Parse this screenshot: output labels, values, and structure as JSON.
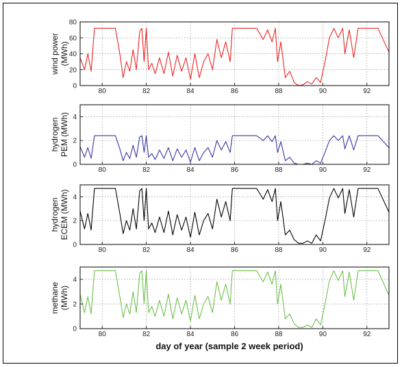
{
  "chart_data": {
    "type": "line",
    "xlabel": "day of year (sample 2 week period)",
    "x_ticks": [
      80,
      82,
      84,
      86,
      88,
      90,
      92
    ],
    "xlim": [
      79,
      93
    ],
    "grid": true,
    "panels": [
      {
        "ylabel": [
          "wind power",
          "(MWh)"
        ],
        "color": "#ee2222",
        "ylim": [
          0,
          80
        ],
        "y_ticks": [
          0,
          20,
          40,
          60,
          80
        ],
        "series": [
          {
            "x": [
              79.0,
              79.2,
              79.35,
              79.5,
              79.65,
              79.8,
              80.0,
              80.2,
              80.4,
              80.6,
              80.8,
              80.95,
              81.1,
              81.25,
              81.4,
              81.55,
              81.7,
              81.8,
              81.9,
              82.0,
              82.1,
              82.25,
              82.4,
              82.6,
              82.8,
              83.0,
              83.2,
              83.4,
              83.6,
              83.8,
              84.0,
              84.2,
              84.4,
              84.6,
              84.8,
              85.0,
              85.2,
              85.4,
              85.6,
              85.8,
              85.9,
              86.0,
              86.5,
              87.0,
              87.3,
              87.5,
              87.7,
              87.85,
              87.95,
              88.1,
              88.3,
              88.5,
              88.7,
              88.9,
              89.1,
              89.3,
              89.5,
              89.7,
              89.9,
              90.1,
              90.3,
              90.5,
              90.7,
              90.9,
              91.0,
              91.2,
              91.4,
              91.6,
              91.8,
              92.0,
              92.5,
              93.0
            ],
            "y": [
              35,
              20,
              40,
              18,
              72,
              72,
              72,
              72,
              72,
              72,
              40,
              10,
              30,
              18,
              45,
              20,
              68,
              72,
              30,
              72,
              20,
              28,
              15,
              35,
              15,
              42,
              12,
              38,
              18,
              35,
              8,
              40,
              10,
              30,
              40,
              20,
              58,
              35,
              55,
              30,
              72,
              72,
              72,
              72,
              58,
              70,
              55,
              72,
              30,
              55,
              10,
              18,
              4,
              0,
              1,
              5,
              2,
              10,
              4,
              30,
              60,
              72,
              60,
              72,
              40,
              70,
              35,
              72,
              72,
              72,
              72,
              42
            ]
          }
        ]
      },
      {
        "ylabel": [
          "hydrogen",
          "PEM (MWh)"
        ],
        "color": "#3535a5",
        "ylim": [
          0,
          5
        ],
        "y_ticks": [
          0,
          2,
          4
        ],
        "series": [
          {
            "x": [
              79.0,
              79.2,
              79.35,
              79.5,
              79.65,
              79.8,
              80.0,
              80.2,
              80.4,
              80.6,
              80.8,
              80.95,
              81.1,
              81.25,
              81.4,
              81.55,
              81.7,
              81.8,
              81.9,
              82.0,
              82.1,
              82.25,
              82.4,
              82.6,
              82.8,
              83.0,
              83.2,
              83.4,
              83.6,
              83.8,
              84.0,
              84.2,
              84.4,
              84.6,
              84.8,
              85.0,
              85.2,
              85.4,
              85.6,
              85.8,
              85.9,
              86.0,
              86.5,
              87.0,
              87.3,
              87.5,
              87.7,
              87.85,
              87.95,
              88.1,
              88.3,
              88.5,
              88.7,
              88.9,
              89.1,
              89.3,
              89.5,
              89.7,
              89.9,
              90.1,
              90.3,
              90.5,
              90.7,
              90.9,
              91.0,
              91.2,
              91.4,
              91.6,
              91.8,
              92.0,
              92.5,
              93.0
            ],
            "y": [
              1.5,
              0.6,
              1.4,
              0.5,
              2.4,
              2.4,
              2.4,
              2.4,
              2.4,
              2.4,
              1.3,
              0.3,
              1.0,
              0.5,
              1.6,
              0.6,
              2.3,
              2.4,
              1.0,
              2.4,
              0.6,
              0.9,
              0.4,
              1.2,
              0.5,
              1.4,
              0.3,
              1.3,
              0.6,
              1.2,
              0.2,
              1.4,
              0.3,
              1.0,
              1.4,
              0.6,
              2.0,
              1.2,
              1.9,
              1.0,
              2.4,
              2.4,
              2.4,
              2.4,
              2.0,
              2.4,
              1.9,
              2.4,
              1.0,
              1.9,
              0.3,
              0.6,
              0.1,
              0.0,
              0.0,
              0.1,
              0.0,
              0.3,
              0.1,
              1.0,
              2.0,
              2.4,
              2.0,
              2.4,
              1.3,
              2.4,
              1.2,
              2.4,
              2.4,
              2.4,
              2.4,
              1.4
            ]
          }
        ]
      },
      {
        "ylabel": [
          "hydrogen",
          "ECEM (MWh)"
        ],
        "color": "#000000",
        "ylim": [
          0,
          5
        ],
        "y_ticks": [
          0,
          2,
          4
        ],
        "series": [
          {
            "x": [
              79.0,
              79.2,
              79.35,
              79.5,
              79.65,
              79.8,
              80.0,
              80.2,
              80.4,
              80.6,
              80.8,
              80.95,
              81.1,
              81.25,
              81.4,
              81.55,
              81.7,
              81.8,
              81.9,
              82.0,
              82.1,
              82.25,
              82.4,
              82.6,
              82.8,
              83.0,
              83.2,
              83.4,
              83.6,
              83.8,
              84.0,
              84.2,
              84.4,
              84.6,
              84.8,
              85.0,
              85.2,
              85.4,
              85.6,
              85.8,
              85.9,
              86.0,
              86.5,
              87.0,
              87.3,
              87.5,
              87.7,
              87.85,
              87.95,
              88.1,
              88.3,
              88.5,
              88.7,
              88.9,
              89.1,
              89.3,
              89.5,
              89.7,
              89.9,
              90.1,
              90.3,
              90.5,
              90.7,
              90.9,
              91.0,
              91.2,
              91.4,
              91.6,
              91.8,
              92.0,
              92.5,
              93.0
            ],
            "y": [
              2.8,
              1.3,
              2.6,
              1.2,
              4.7,
              4.7,
              4.7,
              4.7,
              4.7,
              4.7,
              2.6,
              0.9,
              2.0,
              1.2,
              3.0,
              1.3,
              4.5,
              4.7,
              2.0,
              4.7,
              1.3,
              1.8,
              1.0,
              2.3,
              1.0,
              2.8,
              0.8,
              2.5,
              1.2,
              2.3,
              0.6,
              2.7,
              0.8,
              2.0,
              2.6,
              1.3,
              3.8,
              2.3,
              3.6,
              2.0,
              4.7,
              4.7,
              4.7,
              4.7,
              3.8,
              4.6,
              3.6,
              4.7,
              2.0,
              3.6,
              0.8,
              1.2,
              0.4,
              0.1,
              0.1,
              0.3,
              0.1,
              0.8,
              0.3,
              2.0,
              3.9,
              4.7,
              3.9,
              4.7,
              2.6,
              4.6,
              2.3,
              4.7,
              4.7,
              4.7,
              4.7,
              2.7
            ]
          }
        ]
      },
      {
        "ylabel": [
          "methane",
          "(MWh)"
        ],
        "color": "#6cc04a",
        "ylim": [
          0,
          5
        ],
        "y_ticks": [
          0,
          2,
          4
        ],
        "series": [
          {
            "x": [
              79.0,
              79.2,
              79.35,
              79.5,
              79.65,
              79.8,
              80.0,
              80.2,
              80.4,
              80.6,
              80.8,
              80.95,
              81.1,
              81.25,
              81.4,
              81.55,
              81.7,
              81.8,
              81.9,
              82.0,
              82.1,
              82.25,
              82.4,
              82.6,
              82.8,
              83.0,
              83.2,
              83.4,
              83.6,
              83.8,
              84.0,
              84.2,
              84.4,
              84.6,
              84.8,
              85.0,
              85.2,
              85.4,
              85.6,
              85.8,
              85.9,
              86.0,
              86.5,
              87.0,
              87.3,
              87.5,
              87.7,
              87.85,
              87.95,
              88.1,
              88.3,
              88.5,
              88.7,
              88.9,
              89.1,
              89.3,
              89.5,
              89.7,
              89.9,
              90.1,
              90.3,
              90.5,
              90.7,
              90.9,
              91.0,
              91.2,
              91.4,
              91.6,
              91.8,
              92.0,
              92.5,
              93.0
            ],
            "y": [
              2.8,
              1.3,
              2.6,
              1.2,
              4.7,
              4.7,
              4.7,
              4.7,
              4.7,
              4.7,
              2.6,
              0.9,
              2.0,
              1.2,
              3.0,
              1.3,
              4.5,
              4.7,
              2.0,
              4.7,
              1.3,
              1.8,
              1.0,
              2.3,
              1.0,
              2.8,
              0.8,
              2.5,
              1.2,
              2.3,
              0.6,
              2.7,
              0.8,
              2.0,
              2.6,
              1.3,
              3.8,
              2.3,
              3.6,
              2.0,
              4.7,
              4.7,
              4.7,
              4.7,
              3.8,
              4.6,
              3.6,
              4.7,
              2.0,
              3.6,
              0.8,
              1.2,
              0.4,
              0.1,
              0.1,
              0.3,
              0.1,
              0.8,
              0.3,
              2.0,
              3.9,
              4.7,
              3.9,
              4.7,
              2.6,
              4.6,
              2.3,
              4.7,
              4.7,
              4.7,
              4.7,
              2.7
            ]
          }
        ]
      }
    ]
  }
}
